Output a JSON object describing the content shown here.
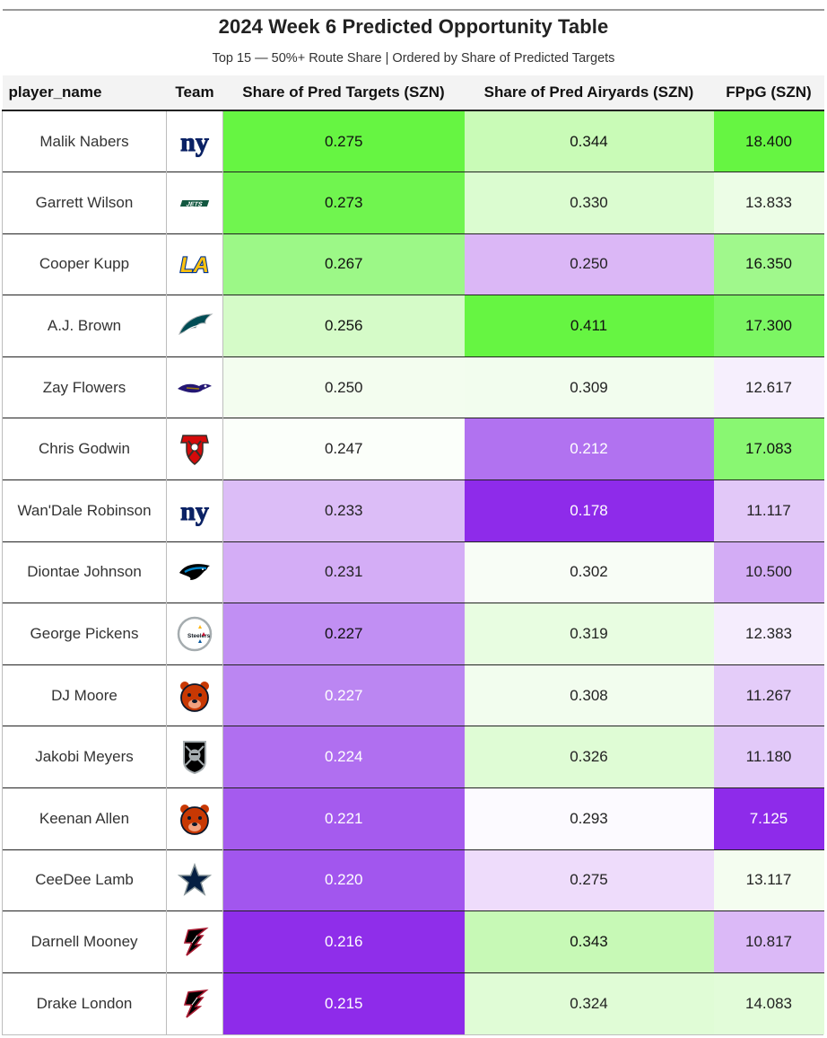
{
  "title": "2024 Week 6 Predicted Opportunity Table",
  "subtitle": "Top 15 — 50%+ Route Share | Ordered by Share of Predicted Targets",
  "headers": {
    "player": "player_name",
    "team": "Team",
    "targets": "Share of Pred Targets (SZN)",
    "airyards": "Share of Pred Airyards (SZN)",
    "fppg": "FPpG (SZN)"
  },
  "colors": {
    "green_max": "#66f542",
    "white_mid": "#ffffff",
    "purple_min": "#8e2bea"
  },
  "chart_data": {
    "type": "table",
    "columns": [
      "player_name",
      "Team",
      "Share of Pred Targets (SZN)",
      "Share of Pred Airyards (SZN)",
      "FPpG (SZN)"
    ],
    "rows": [
      {
        "player": "Malik Nabers",
        "team_icon": "giants-logo-icon",
        "targets": "0.275",
        "airyards": "0.344",
        "fppg": "18.400",
        "bg": [
          "#66f542",
          "#c9fbb7",
          "#66f542"
        ],
        "fg": [
          "#111111",
          "#111111",
          "#111111"
        ]
      },
      {
        "player": "Garrett Wilson",
        "team_icon": "jets-logo-icon",
        "targets": "0.273",
        "airyards": "0.330",
        "fppg": "13.833",
        "bg": [
          "#70f54f",
          "#dbfcd0",
          "#ecfde6"
        ],
        "fg": [
          "#111111",
          "#222222",
          "#222222"
        ]
      },
      {
        "player": "Cooper Kupp",
        "team_icon": "rams-logo-icon",
        "targets": "0.267",
        "airyards": "0.250",
        "fppg": "16.350",
        "bg": [
          "#9cf887",
          "#dbb7f6",
          "#a0f88c"
        ],
        "fg": [
          "#111111",
          "#222222",
          "#111111"
        ]
      },
      {
        "player": "A.J. Brown",
        "team_icon": "eagles-logo-icon",
        "targets": "0.256",
        "airyards": "0.411",
        "fppg": "17.300",
        "bg": [
          "#d5fbc8",
          "#66f542",
          "#7cf663"
        ],
        "fg": [
          "#111111",
          "#111111",
          "#111111"
        ]
      },
      {
        "player": "Zay Flowers",
        "team_icon": "ravens-logo-icon",
        "targets": "0.250",
        "airyards": "0.309",
        "fppg": "12.617",
        "bg": [
          "#f3fdef",
          "#f2fdee",
          "#f6effd"
        ],
        "fg": [
          "#222222",
          "#222222",
          "#222222"
        ]
      },
      {
        "player": "Chris Godwin",
        "team_icon": "buccaneers-logo-icon",
        "targets": "0.247",
        "airyards": "0.212",
        "fppg": "17.083",
        "bg": [
          "#fbfffa",
          "#b172f0",
          "#89f772"
        ],
        "fg": [
          "#222222",
          "#ffffff",
          "#111111"
        ]
      },
      {
        "player": "Wan'Dale Robinson",
        "team_icon": "giants-logo-icon",
        "targets": "0.233",
        "airyards": "0.178",
        "fppg": "11.117",
        "bg": [
          "#dcbdf7",
          "#8e2bea",
          "#e2c8f8"
        ],
        "fg": [
          "#222222",
          "#ffffff",
          "#222222"
        ]
      },
      {
        "player": "Diontae Johnson",
        "team_icon": "panthers-logo-icon",
        "targets": "0.231",
        "airyards": "0.302",
        "fppg": "10.500",
        "bg": [
          "#d4adf6",
          "#f8fdf6",
          "#d3acf5"
        ],
        "fg": [
          "#222222",
          "#222222",
          "#222222"
        ]
      },
      {
        "player": "George Pickens",
        "team_icon": "steelers-logo-icon",
        "targets": "0.227",
        "airyards": "0.319",
        "fppg": "12.383",
        "bg": [
          "#c18ff3",
          "#e8fde1",
          "#f5edfd"
        ],
        "fg": [
          "#111111",
          "#222222",
          "#222222"
        ]
      },
      {
        "player": "DJ Moore",
        "team_icon": "bears-logo-icon",
        "targets": "0.227",
        "airyards": "0.308",
        "fppg": "11.267",
        "bg": [
          "#bb86f2",
          "#f2fdee",
          "#e4ccf9"
        ],
        "fg": [
          "#ffffff",
          "#222222",
          "#222222"
        ]
      },
      {
        "player": "Jakobi Meyers",
        "team_icon": "raiders-logo-icon",
        "targets": "0.224",
        "airyards": "0.326",
        "fppg": "11.180",
        "bg": [
          "#b06ff0",
          "#dffcd5",
          "#e2c9f9"
        ],
        "fg": [
          "#ffffff",
          "#222222",
          "#222222"
        ]
      },
      {
        "player": "Keenan Allen",
        "team_icon": "bears-logo-icon",
        "targets": "0.221",
        "airyards": "0.293",
        "fppg": "7.125",
        "bg": [
          "#a55bee",
          "#fcfaff",
          "#8e2bea"
        ],
        "fg": [
          "#ffffff",
          "#222222",
          "#ffffff"
        ]
      },
      {
        "player": "CeeDee Lamb",
        "team_icon": "cowboys-logo-icon",
        "targets": "0.220",
        "airyards": "0.275",
        "fppg": "13.117",
        "bg": [
          "#a256ee",
          "#eedcfb",
          "#f4fdf0"
        ],
        "fg": [
          "#ffffff",
          "#222222",
          "#222222"
        ]
      },
      {
        "player": "Darnell Mooney",
        "team_icon": "falcons-logo-icon",
        "targets": "0.216",
        "airyards": "0.343",
        "fppg": "10.817",
        "bg": [
          "#8f2eea",
          "#c7f9b6",
          "#dbb9f7"
        ],
        "fg": [
          "#ffffff",
          "#111111",
          "#222222"
        ]
      },
      {
        "player": "Drake London",
        "team_icon": "falcons-logo-icon",
        "targets": "0.215",
        "airyards": "0.324",
        "fppg": "14.083",
        "bg": [
          "#8e2bea",
          "#e0fcd6",
          "#e2fcd9"
        ],
        "fg": [
          "#ffffff",
          "#222222",
          "#222222"
        ]
      }
    ]
  }
}
